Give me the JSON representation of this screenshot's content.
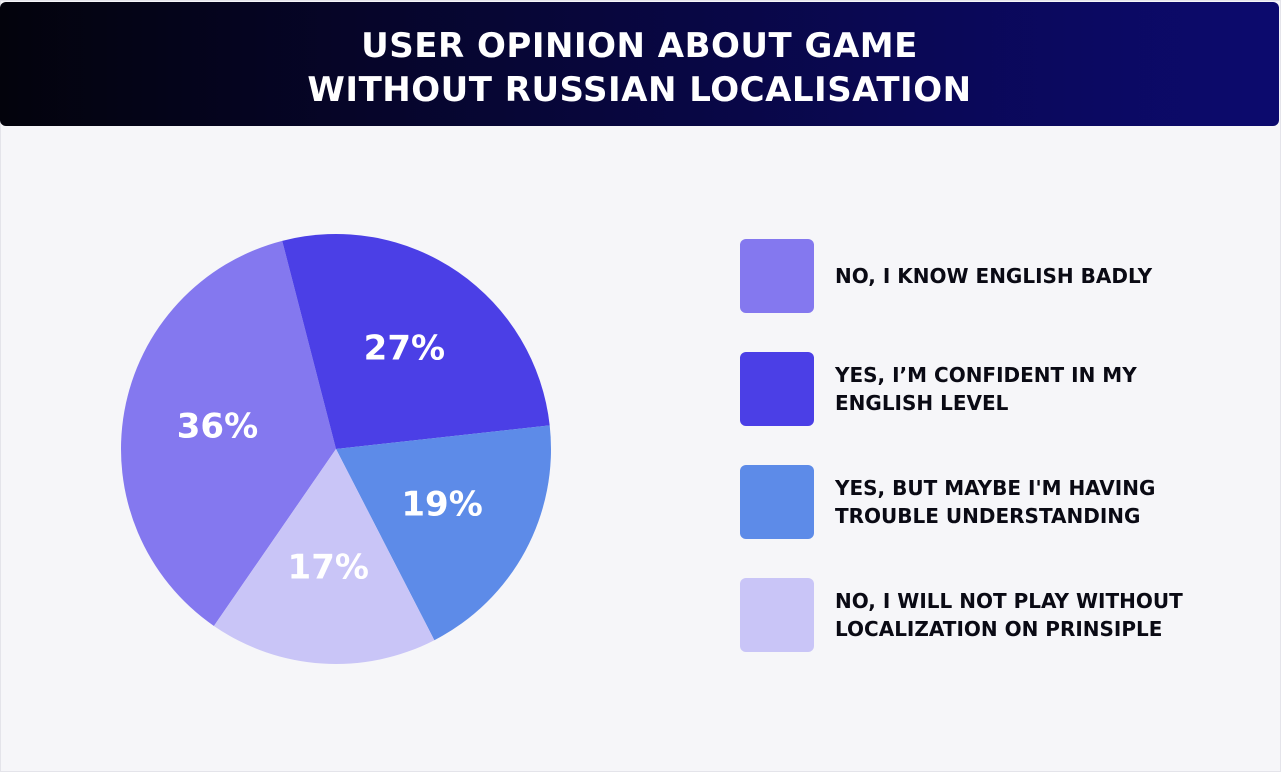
{
  "chart_data": {
    "type": "pie",
    "title_lines": [
      "USER OPINION ABOUT GAME",
      "WITHOUT RUSSIAN LOCALISATION"
    ],
    "categories": [
      "NO, I KNOW ENGLISH BADLY",
      "YES, I’M CONFIDENT IN MY ENGLISH LEVEL",
      "YES, BUT MAYBE I'M HAVING TROUBLE UNDERSTANDING",
      "NO, I WILL NOT PLAY WITHOUT LOCALIZATION ON PRINSIPLE"
    ],
    "values": [
      36,
      27,
      19,
      17
    ],
    "value_labels": [
      "36%",
      "27%",
      "19%",
      "17%"
    ],
    "colors": [
      "#8478ef",
      "#4b3fe6",
      "#5d8be8",
      "#c9c5f7"
    ]
  }
}
